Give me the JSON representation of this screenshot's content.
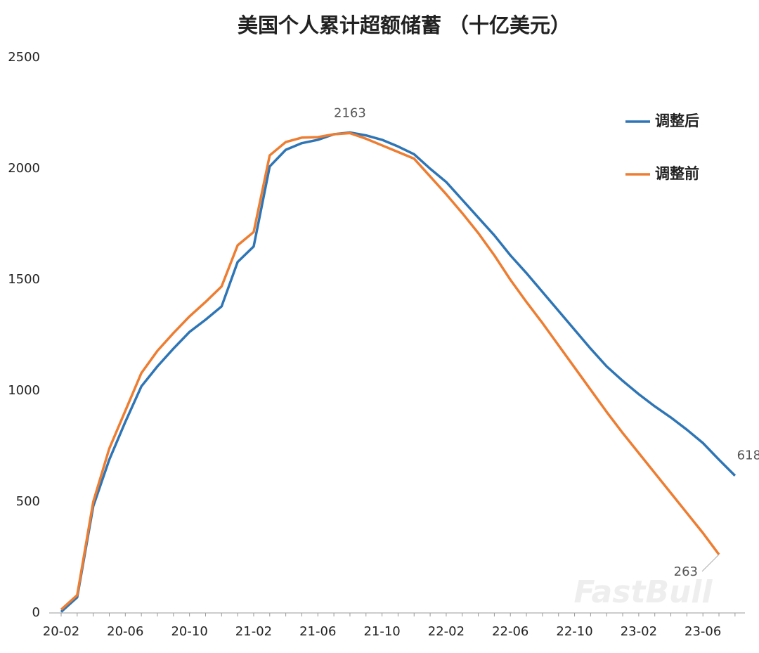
{
  "chart_data": {
    "type": "line",
    "title": "美国个人累计超额储蓄 （十亿美元）",
    "categories": [
      "20-02",
      null,
      null,
      null,
      "20-06",
      null,
      null,
      null,
      "20-10",
      null,
      null,
      null,
      "21-02",
      null,
      null,
      null,
      "21-06",
      null,
      null,
      null,
      "21-10",
      null,
      null,
      null,
      "22-02",
      null,
      null,
      null,
      "22-06",
      null,
      null,
      null,
      "22-10",
      null,
      null,
      null,
      "23-02",
      null,
      null,
      null,
      "23-06",
      null,
      null
    ],
    "series": [
      {
        "name": "调整后",
        "color": "#2e75b6",
        "values": [
          5,
          70,
          480,
          690,
          860,
          1020,
          1110,
          1190,
          1265,
          1320,
          1380,
          1580,
          1650,
          2010,
          2085,
          2115,
          2130,
          2155,
          2163,
          2150,
          2130,
          2100,
          2065,
          2000,
          1940,
          1860,
          1780,
          1700,
          1610,
          1530,
          1445,
          1360,
          1275,
          1190,
          1110,
          1045,
          985,
          930,
          880,
          825,
          765,
          690,
          618
        ]
      },
      {
        "name": "调整前",
        "color": "#ed7d31",
        "values": [
          15,
          80,
          500,
          740,
          910,
          1080,
          1180,
          1260,
          1335,
          1400,
          1470,
          1655,
          1715,
          2060,
          2120,
          2140,
          2142,
          2155,
          2160,
          2135,
          2105,
          2075,
          2045,
          1965,
          1885,
          1800,
          1710,
          1610,
          1500,
          1400,
          1305,
          1205,
          1105,
          1005,
          905,
          810,
          720,
          630,
          540,
          450,
          360,
          263,
          null
        ]
      }
    ],
    "ylim": [
      0,
      2500
    ],
    "yticks": [
      0,
      500,
      1000,
      1500,
      2000,
      2500
    ],
    "grid": false,
    "legend": "upper right",
    "watermark": "FastBull"
  }
}
